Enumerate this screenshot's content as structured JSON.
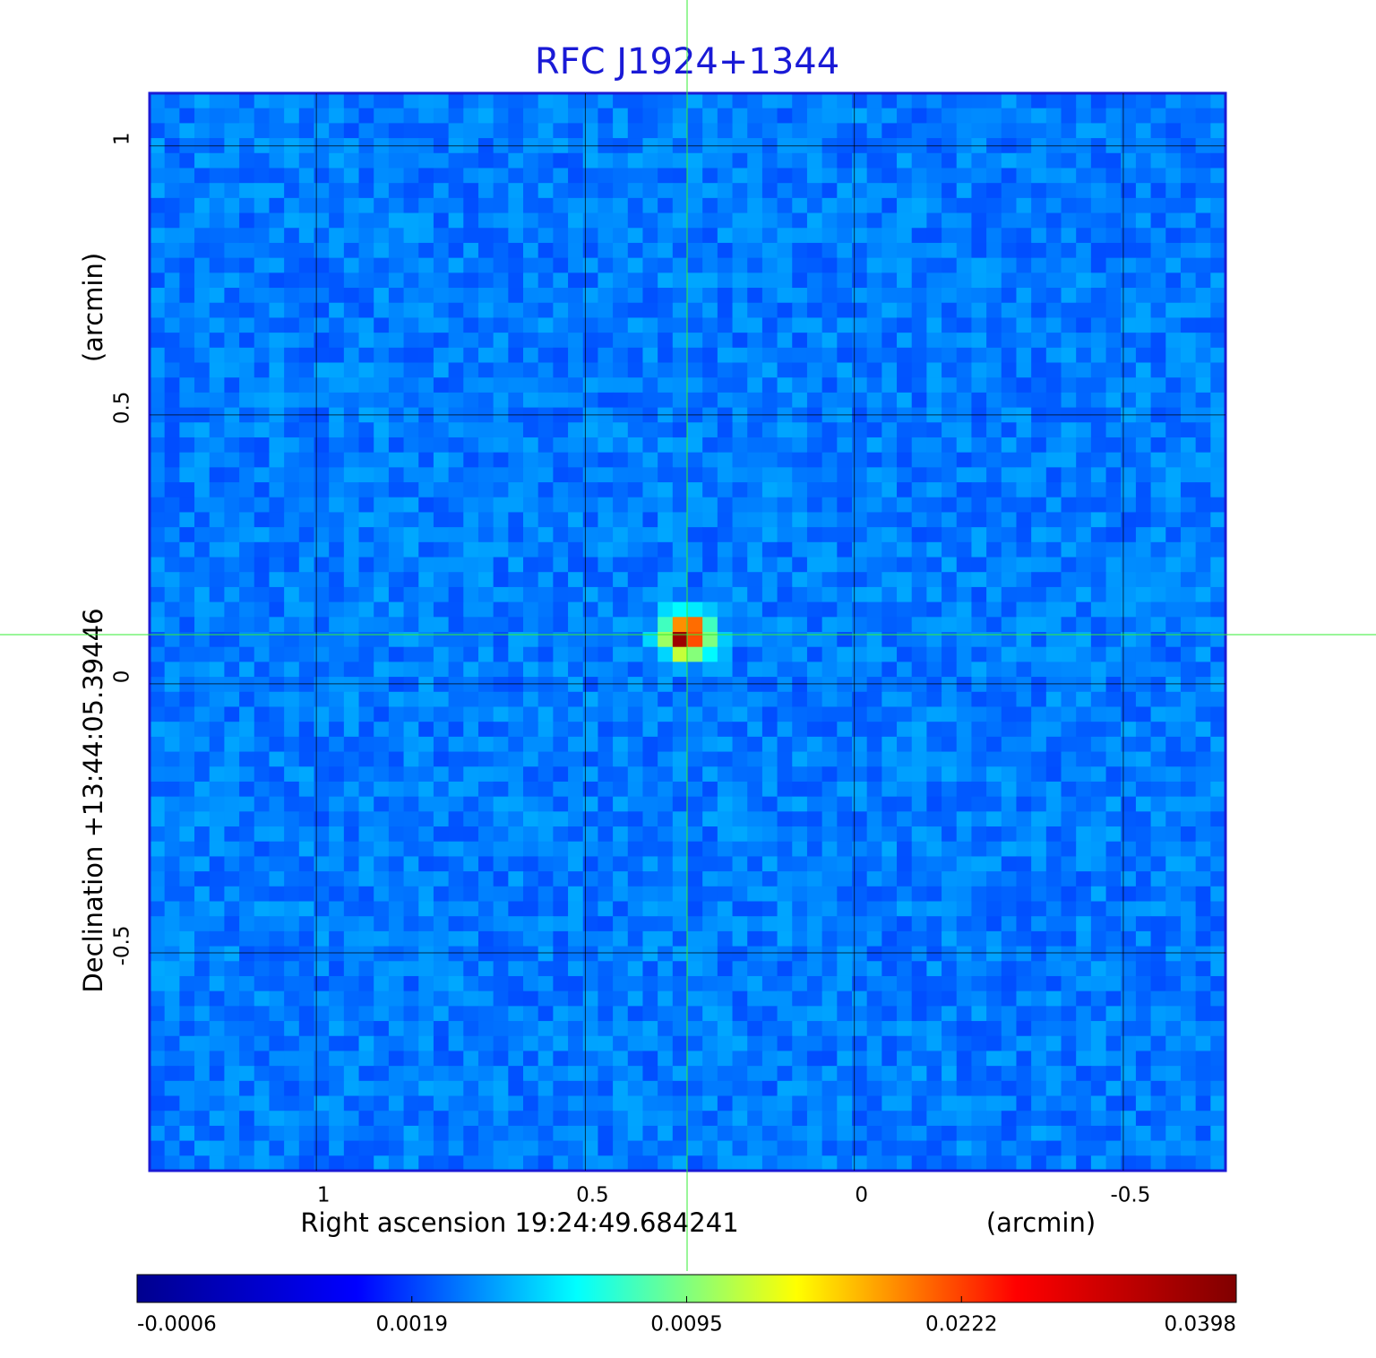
{
  "chart_data": {
    "type": "image",
    "title": "RFC J1924+1344",
    "x_label": "Right ascension  19:24:49.684241",
    "x_unit": "(arcmin)",
    "y_label": "Declination  +13:44:05.39446",
    "y_unit": "(arcmin)",
    "xlim": [
      1.31,
      -0.69
    ],
    "xticks": [
      1.0,
      0.5,
      0.0,
      -0.5
    ],
    "ylim": [
      -0.905,
      1.098
    ],
    "yticks": [
      1.0,
      0.5,
      0.0,
      -0.5
    ],
    "grid": true,
    "colormap": [
      "#00008f",
      "#0000ff",
      "#00ffff",
      "#ffff00",
      "#ff0000",
      "#800000"
    ],
    "colorbar_ticks": [
      -0.0006,
      0.0019,
      0.0095,
      0.0222,
      0.0398
    ]
  }
}
